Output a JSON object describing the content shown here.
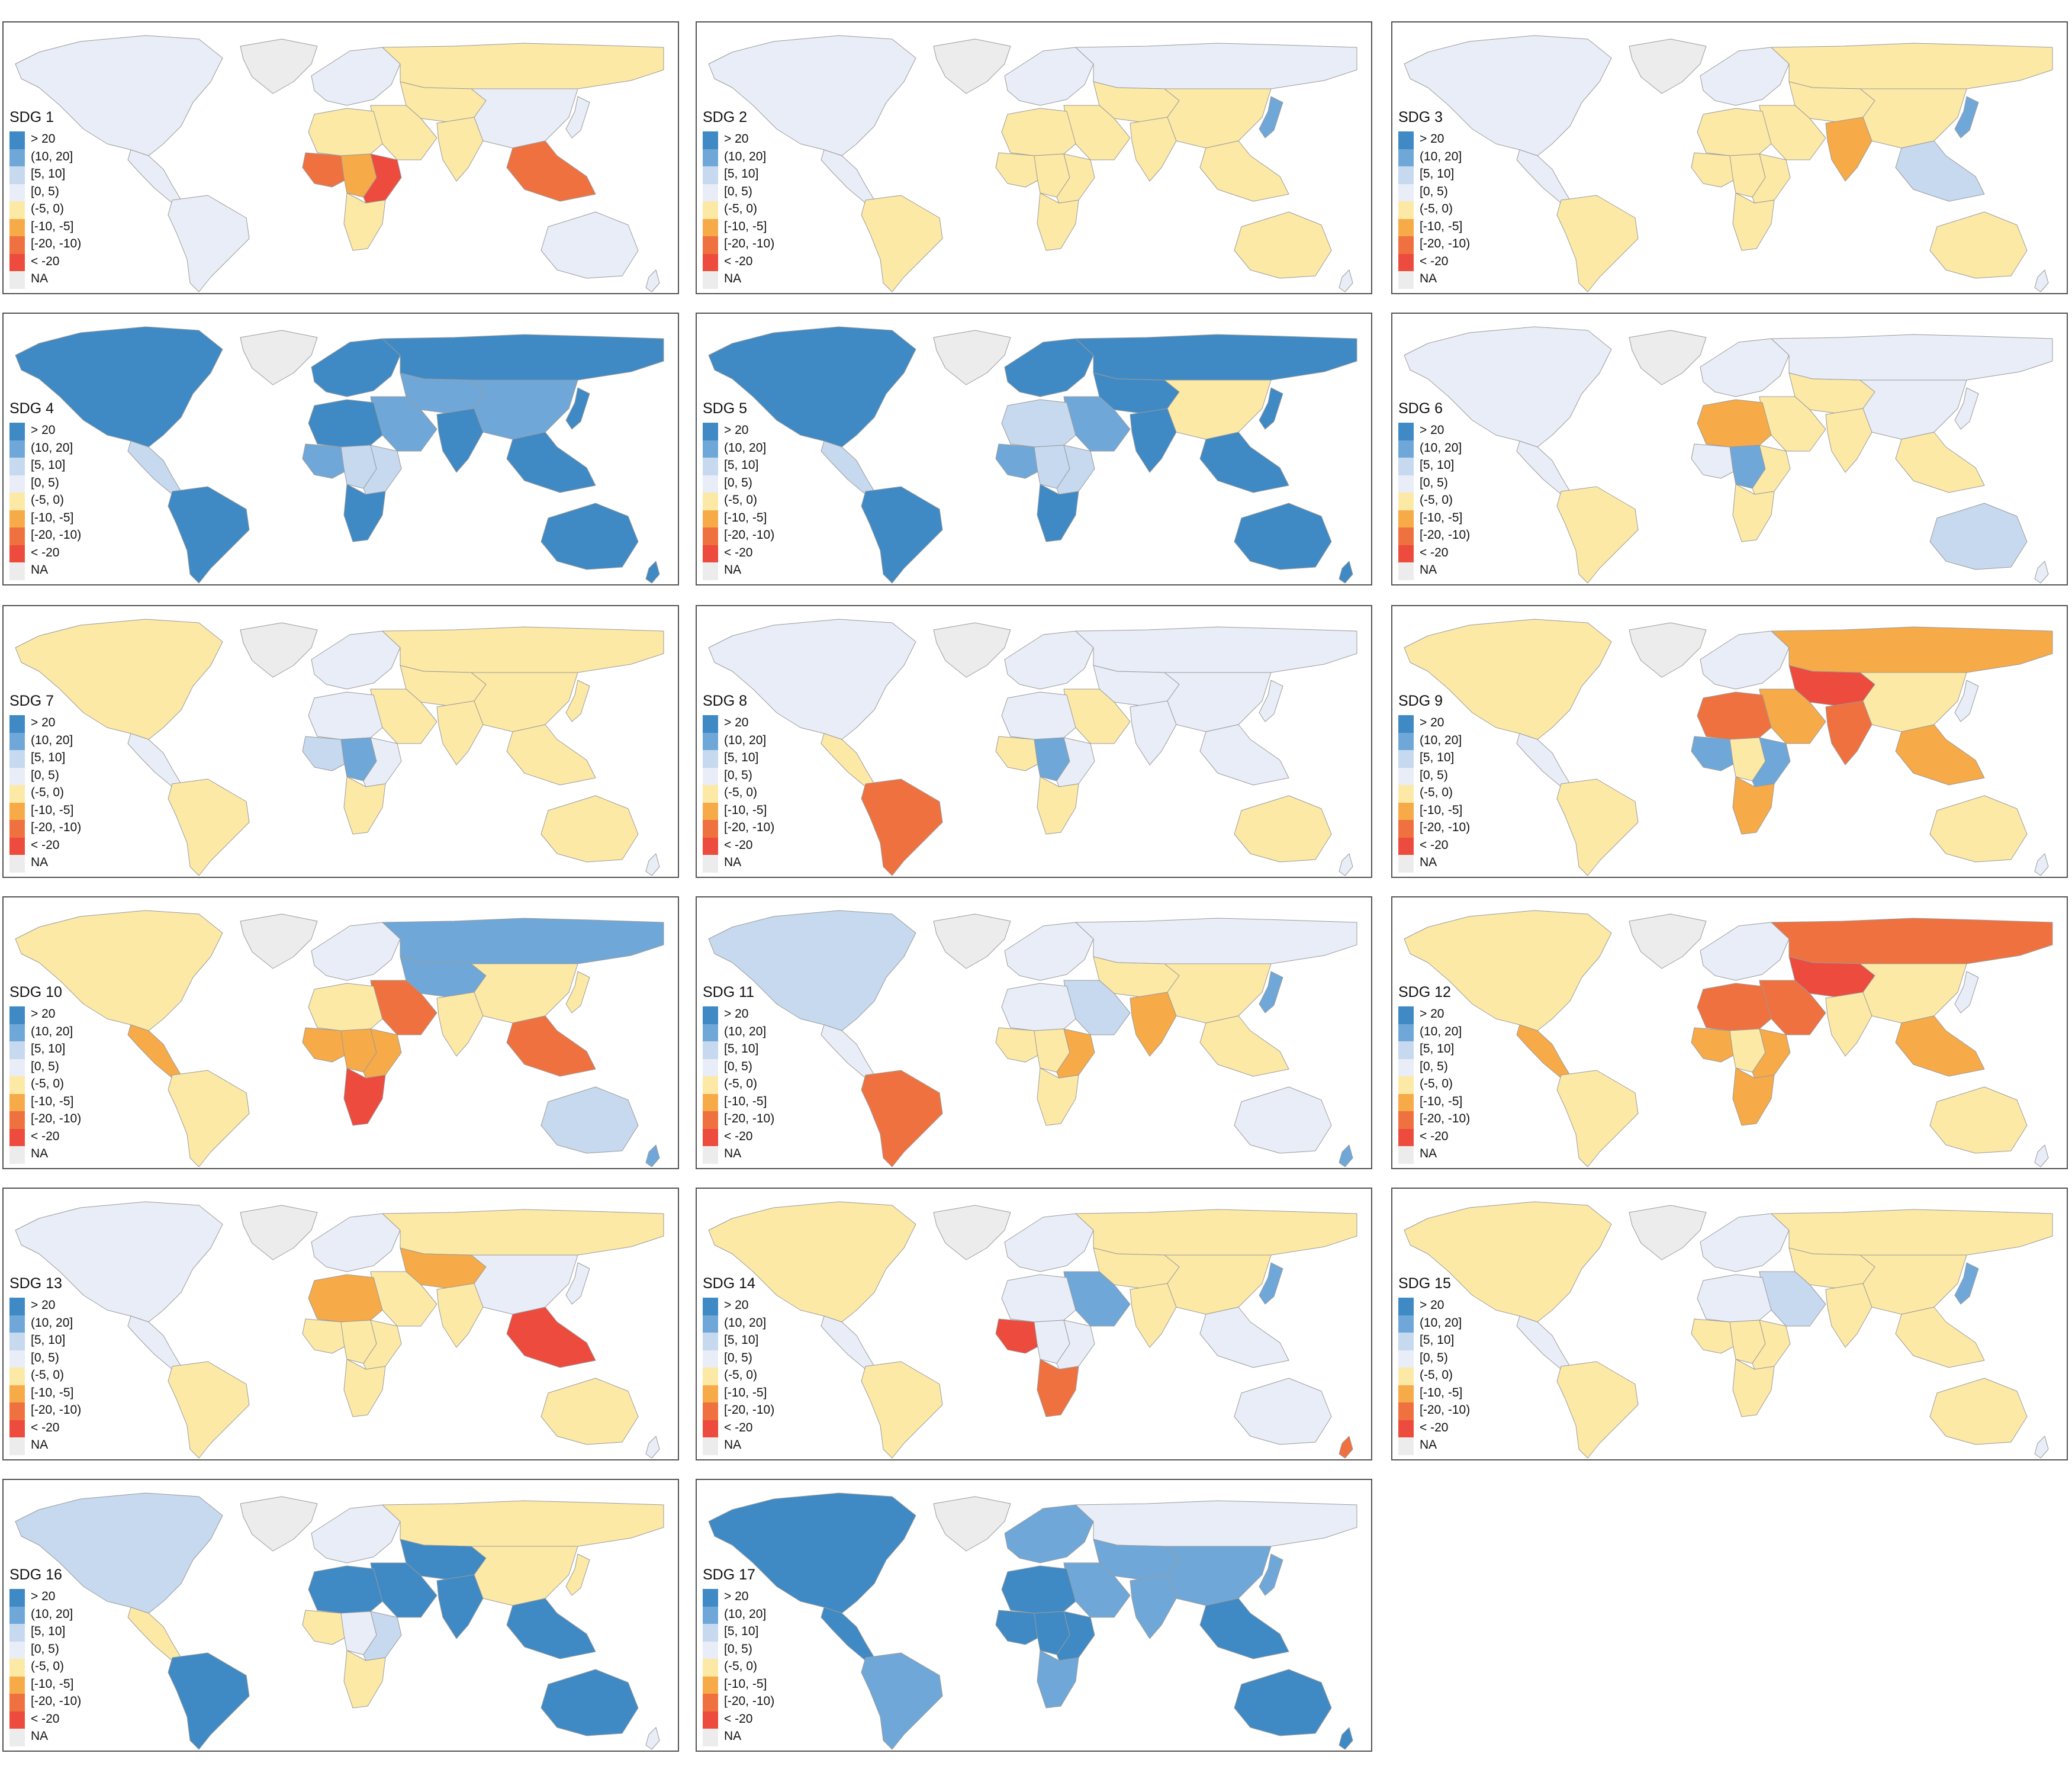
{
  "legend": [
    {
      "label": "> 20",
      "color": "#3f8ac4"
    },
    {
      "label": "(10, 20]",
      "color": "#6fa8d8"
    },
    {
      "label": "[5, 10]",
      "color": "#c6d9ef"
    },
    {
      "label": "[0, 5)",
      "color": "#e8edf7"
    },
    {
      "label": "(-5, 0)",
      "color": "#fde9a6"
    },
    {
      "label": "[-10, -5]",
      "color": "#f7aa48"
    },
    {
      "label": "[-20, -10)",
      "color": "#f07140"
    },
    {
      "label": "< -20",
      "color": "#ec4b3d"
    },
    {
      "label": "NA",
      "color": "#ececec"
    }
  ],
  "panels": [
    {
      "title": "SDG 1",
      "regions": {
        "greenland": "NA",
        "north_america": "[0, 5)",
        "central_america": "[0, 5)",
        "south_america": "[0, 5)",
        "europe": "[0, 5)",
        "russia_north_asia": "(-5, 0)",
        "central_asia": "(-5, 0)",
        "middle_east": "(-5, 0)",
        "north_africa": "(-5, 0)",
        "west_africa": "[-20, -10)",
        "central_africa": "[-10, -5]",
        "east_africa": "< -20",
        "southern_africa": "(-5, 0)",
        "south_asia": "(-5, 0)",
        "china_east_asia": "[0, 5)",
        "southeast_asia": "[-20, -10)",
        "japan": "[0, 5)",
        "australia": "[0, 5)",
        "new_zealand": "[0, 5)"
      }
    },
    {
      "title": "SDG 2",
      "regions": {
        "greenland": "NA",
        "north_america": "[0, 5)",
        "central_america": "[0, 5)",
        "south_america": "(-5, 0)",
        "europe": "[0, 5)",
        "russia_north_asia": "[0, 5)",
        "central_asia": "(-5, 0)",
        "middle_east": "(-5, 0)",
        "north_africa": "(-5, 0)",
        "west_africa": "(-5, 0)",
        "central_africa": "(-5, 0)",
        "east_africa": "(-5, 0)",
        "southern_africa": "(-5, 0)",
        "south_asia": "(-5, 0)",
        "china_east_asia": "(-5, 0)",
        "southeast_asia": "(-5, 0)",
        "japan": "(10, 20]",
        "australia": "(-5, 0)",
        "new_zealand": "[0, 5)"
      }
    },
    {
      "title": "SDG 3",
      "regions": {
        "greenland": "NA",
        "north_america": "[0, 5)",
        "central_america": "[0, 5)",
        "south_america": "(-5, 0)",
        "europe": "[0, 5)",
        "russia_north_asia": "(-5, 0)",
        "central_asia": "(-5, 0)",
        "middle_east": "(-5, 0)",
        "north_africa": "(-5, 0)",
        "west_africa": "(-5, 0)",
        "central_africa": "(-5, 0)",
        "east_africa": "(-5, 0)",
        "southern_africa": "(-5, 0)",
        "south_asia": "[-10, -5]",
        "china_east_asia": "(-5, 0)",
        "southeast_asia": "[5, 10]",
        "japan": "(10, 20]",
        "australia": "(-5, 0)",
        "new_zealand": "[0, 5)"
      }
    },
    {
      "title": "SDG 4",
      "regions": {
        "greenland": "NA",
        "north_america": "> 20",
        "central_america": "[5, 10]",
        "south_america": "> 20",
        "europe": "> 20",
        "russia_north_asia": "> 20",
        "central_asia": "(10, 20]",
        "middle_east": "(10, 20]",
        "north_africa": "> 20",
        "west_africa": "(10, 20]",
        "central_africa": "[5, 10]",
        "east_africa": "[5, 10]",
        "southern_africa": "> 20",
        "south_asia": "> 20",
        "china_east_asia": "(10, 20]",
        "southeast_asia": "> 20",
        "japan": "> 20",
        "australia": "> 20",
        "new_zealand": "> 20"
      }
    },
    {
      "title": "SDG 5",
      "regions": {
        "greenland": "NA",
        "north_america": "> 20",
        "central_america": "[5, 10]",
        "south_america": "> 20",
        "europe": "> 20",
        "russia_north_asia": "> 20",
        "central_asia": "> 20",
        "middle_east": "(10, 20]",
        "north_africa": "[5, 10]",
        "west_africa": "(10, 20]",
        "central_africa": "[5, 10]",
        "east_africa": "[5, 10]",
        "southern_africa": "> 20",
        "south_asia": "> 20",
        "china_east_asia": "(-5, 0)",
        "southeast_asia": "> 20",
        "japan": "> 20",
        "australia": "> 20",
        "new_zealand": "> 20"
      }
    },
    {
      "title": "SDG 6",
      "regions": {
        "greenland": "NA",
        "north_america": "[0, 5)",
        "central_america": "[0, 5)",
        "south_america": "(-5, 0)",
        "europe": "[0, 5)",
        "russia_north_asia": "[0, 5)",
        "central_asia": "(-5, 0)",
        "middle_east": "(-5, 0)",
        "north_africa": "[-10, -5]",
        "west_africa": "[0, 5)",
        "central_africa": "(10, 20]",
        "east_africa": "(-5, 0)",
        "southern_africa": "(-5, 0)",
        "south_asia": "(-5, 0)",
        "china_east_asia": "[0, 5)",
        "southeast_asia": "(-5, 0)",
        "japan": "[0, 5)",
        "australia": "[5, 10]",
        "new_zealand": "[0, 5)"
      }
    },
    {
      "title": "SDG 7",
      "regions": {
        "greenland": "NA",
        "north_america": "(-5, 0)",
        "central_america": "[0, 5)",
        "south_america": "(-5, 0)",
        "europe": "[0, 5)",
        "russia_north_asia": "(-5, 0)",
        "central_asia": "(-5, 0)",
        "middle_east": "(-5, 0)",
        "north_africa": "[0, 5)",
        "west_africa": "[5, 10]",
        "central_africa": "(10, 20]",
        "east_africa": "[0, 5)",
        "southern_africa": "(-5, 0)",
        "south_asia": "(-5, 0)",
        "china_east_asia": "(-5, 0)",
        "southeast_asia": "(-5, 0)",
        "japan": "(-5, 0)",
        "australia": "(-5, 0)",
        "new_zealand": "[0, 5)"
      }
    },
    {
      "title": "SDG 8",
      "regions": {
        "greenland": "NA",
        "north_america": "[0, 5)",
        "central_america": "(-5, 0)",
        "south_america": "[-20, -10)",
        "europe": "[0, 5)",
        "russia_north_asia": "[0, 5)",
        "central_asia": "[0, 5)",
        "middle_east": "(-5, 0)",
        "north_africa": "[0, 5)",
        "west_africa": "(-5, 0)",
        "central_africa": "(10, 20]",
        "east_africa": "[0, 5)",
        "southern_africa": "(-5, 0)",
        "south_asia": "[0, 5)",
        "china_east_asia": "[0, 5)",
        "southeast_asia": "[0, 5)",
        "japan": "[0, 5)",
        "australia": "(-5, 0)",
        "new_zealand": "[0, 5)"
      }
    },
    {
      "title": "SDG 9",
      "regions": {
        "greenland": "NA",
        "north_america": "(-5, 0)",
        "central_america": "[0, 5)",
        "south_america": "(-5, 0)",
        "europe": "[0, 5)",
        "russia_north_asia": "[-10, -5]",
        "central_asia": "< -20",
        "middle_east": "[-10, -5]",
        "north_africa": "[-20, -10)",
        "west_africa": "(10, 20]",
        "central_africa": "(-5, 0)",
        "east_africa": "(10, 20]",
        "southern_africa": "[-10, -5]",
        "south_asia": "[-20, -10)",
        "china_east_asia": "(-5, 0)",
        "southeast_asia": "[-10, -5]",
        "japan": "[0, 5)",
        "australia": "(-5, 0)",
        "new_zealand": "[0, 5)"
      }
    },
    {
      "title": "SDG 10",
      "regions": {
        "greenland": "NA",
        "north_america": "(-5, 0)",
        "central_america": "[-10, -5]",
        "south_america": "(-5, 0)",
        "europe": "[0, 5)",
        "russia_north_asia": "(10, 20]",
        "central_asia": "(10, 20]",
        "middle_east": "[-20, -10)",
        "north_africa": "(-5, 0)",
        "west_africa": "[-10, -5]",
        "central_africa": "[-10, -5]",
        "east_africa": "[-10, -5]",
        "southern_africa": "< -20",
        "south_asia": "(-5, 0)",
        "china_east_asia": "(-5, 0)",
        "southeast_asia": "[-20, -10)",
        "japan": "(-5, 0)",
        "australia": "[5, 10]",
        "new_zealand": "(10, 20]"
      }
    },
    {
      "title": "SDG 11",
      "regions": {
        "greenland": "NA",
        "north_america": "[5, 10]",
        "central_america": "[0, 5)",
        "south_america": "[-20, -10)",
        "europe": "[0, 5)",
        "russia_north_asia": "[0, 5)",
        "central_asia": "(-5, 0)",
        "middle_east": "[5, 10]",
        "north_africa": "[0, 5)",
        "west_africa": "(-5, 0)",
        "central_africa": "(-5, 0)",
        "east_africa": "[-10, -5]",
        "southern_africa": "(-5, 0)",
        "south_asia": "[-10, -5]",
        "china_east_asia": "(-5, 0)",
        "southeast_asia": "(-5, 0)",
        "japan": "(10, 20]",
        "australia": "[0, 5)",
        "new_zealand": "(10, 20]"
      }
    },
    {
      "title": "SDG 12",
      "regions": {
        "greenland": "NA",
        "north_america": "(-5, 0)",
        "central_america": "[-10, -5]",
        "south_america": "(-5, 0)",
        "europe": "[0, 5)",
        "russia_north_asia": "[-20, -10)",
        "central_asia": "< -20",
        "middle_east": "[-20, -10)",
        "north_africa": "[-20, -10)",
        "west_africa": "[-10, -5]",
        "central_africa": "(-5, 0)",
        "east_africa": "[-10, -5]",
        "southern_africa": "[-10, -5]",
        "south_asia": "(-5, 0)",
        "china_east_asia": "(-5, 0)",
        "southeast_asia": "[-10, -5]",
        "japan": "[0, 5)",
        "australia": "(-5, 0)",
        "new_zealand": "[0, 5)"
      }
    },
    {
      "title": "SDG 13",
      "regions": {
        "greenland": "NA",
        "north_america": "[0, 5)",
        "central_america": "[0, 5)",
        "south_america": "(-5, 0)",
        "europe": "[0, 5)",
        "russia_north_asia": "(-5, 0)",
        "central_asia": "[-10, -5]",
        "middle_east": "(-5, 0)",
        "north_africa": "[-10, -5]",
        "west_africa": "(-5, 0)",
        "central_africa": "(-5, 0)",
        "east_africa": "(-5, 0)",
        "southern_africa": "(-5, 0)",
        "south_asia": "(-5, 0)",
        "china_east_asia": "[0, 5)",
        "southeast_asia": "< -20",
        "japan": "[0, 5)",
        "australia": "(-5, 0)",
        "new_zealand": "[0, 5)"
      }
    },
    {
      "title": "SDG 14",
      "regions": {
        "greenland": "NA",
        "north_america": "(-5, 0)",
        "central_america": "[0, 5)",
        "south_america": "(-5, 0)",
        "europe": "[0, 5)",
        "russia_north_asia": "(-5, 0)",
        "central_asia": "(-5, 0)",
        "middle_east": "(10, 20]",
        "north_africa": "[0, 5)",
        "west_africa": "< -20",
        "central_africa": "[0, 5)",
        "east_africa": "[0, 5)",
        "southern_africa": "[-20, -10)",
        "south_asia": "(-5, 0)",
        "china_east_asia": "(-5, 0)",
        "southeast_asia": "[0, 5)",
        "japan": "(10, 20]",
        "australia": "[0, 5)",
        "new_zealand": "[-20, -10)"
      }
    },
    {
      "title": "SDG 15",
      "regions": {
        "greenland": "NA",
        "north_america": "(-5, 0)",
        "central_america": "[0, 5)",
        "south_america": "(-5, 0)",
        "europe": "[0, 5)",
        "russia_north_asia": "(-5, 0)",
        "central_asia": "(-5, 0)",
        "middle_east": "[5, 10]",
        "north_africa": "[0, 5)",
        "west_africa": "(-5, 0)",
        "central_africa": "(-5, 0)",
        "east_africa": "(-5, 0)",
        "southern_africa": "(-5, 0)",
        "south_asia": "(-5, 0)",
        "china_east_asia": "(-5, 0)",
        "southeast_asia": "(-5, 0)",
        "japan": "(10, 20]",
        "australia": "(-5, 0)",
        "new_zealand": "[0, 5)"
      }
    },
    {
      "title": "SDG 16",
      "regions": {
        "greenland": "NA",
        "north_america": "[5, 10]",
        "central_america": "(-5, 0)",
        "south_america": "> 20",
        "europe": "[0, 5)",
        "russia_north_asia": "(-5, 0)",
        "central_asia": "> 20",
        "middle_east": "> 20",
        "north_africa": "> 20",
        "west_africa": "(-5, 0)",
        "central_africa": "[0, 5)",
        "east_africa": "[5, 10]",
        "southern_africa": "(-5, 0)",
        "south_asia": "> 20",
        "china_east_asia": "(-5, 0)",
        "southeast_asia": "> 20",
        "japan": "(-5, 0)",
        "australia": "> 20",
        "new_zealand": "[0, 5)"
      }
    },
    {
      "title": "SDG 17",
      "regions": {
        "greenland": "NA",
        "north_america": "> 20",
        "central_america": "> 20",
        "south_america": "(10, 20]",
        "europe": "(10, 20]",
        "russia_north_asia": "[0, 5)",
        "central_asia": "(10, 20]",
        "middle_east": "(10, 20]",
        "north_africa": "> 20",
        "west_africa": "> 20",
        "central_africa": "> 20",
        "east_africa": "> 20",
        "southern_africa": "(10, 20]",
        "south_asia": "(10, 20]",
        "china_east_asia": "(10, 20]",
        "southeast_asia": "> 20",
        "japan": "(10, 20]",
        "australia": "> 20",
        "new_zealand": "> 20"
      }
    }
  ]
}
